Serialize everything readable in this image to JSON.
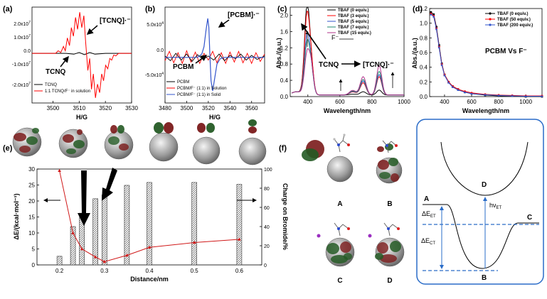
{
  "chart_data": [
    {
      "id": "a",
      "panel_label": "(a)",
      "type": "line",
      "xlabel": "H/G",
      "xlim": [
        3492,
        3530
      ],
      "xticks": [
        "3500",
        "3510",
        "3520",
        "3530"
      ],
      "yticks": [
        "2.0x10^7",
        "1.0x10^7",
        "0.0",
        "-1.0x10^7",
        "-2.0x10^7"
      ],
      "ylim": [
        -2.9,
        2.7
      ],
      "legend": [
        {
          "name": "TCNQ",
          "color": "#000000"
        },
        {
          "name": "1:1 TCNQ/F⁻ in solution",
          "color": "#ff0000"
        }
      ],
      "annotations": [
        "[TCNQ]·⁻",
        "TCNQ"
      ],
      "series": [
        {
          "name": "TCNQ",
          "values": [
            [
              3492,
              0
            ],
            [
              3505,
              0
            ],
            [
              3508,
              -0.05
            ],
            [
              3510,
              0.05
            ],
            [
              3512,
              -0.08
            ],
            [
              3514,
              0.05
            ],
            [
              3516,
              -0.05
            ],
            [
              3520,
              0
            ],
            [
              3530,
              0
            ]
          ]
        },
        {
          "name": "1:1 TCNQ/F⁻ in solution",
          "values": [
            [
              3492,
              0
            ],
            [
              3501,
              0
            ],
            [
              3502,
              0.15
            ],
            [
              3503,
              0.05
            ],
            [
              3504,
              0.4
            ],
            [
              3504.7,
              0.15
            ],
            [
              3505.5,
              0.9
            ],
            [
              3506.3,
              0.45
            ],
            [
              3507,
              1.5
            ],
            [
              3507.8,
              1.0
            ],
            [
              3508.6,
              2.1
            ],
            [
              3509.4,
              1.4
            ],
            [
              3510.2,
              2.4
            ],
            [
              3511,
              1.5
            ],
            [
              3511.8,
              2.2
            ],
            [
              3512.5,
              0.6
            ],
            [
              3513.3,
              -1.0
            ],
            [
              3514,
              -0.3
            ],
            [
              3514.7,
              -2.1
            ],
            [
              3515.4,
              -1.2
            ],
            [
              3516.2,
              -2.6
            ],
            [
              3517,
              -1.8
            ],
            [
              3517.8,
              -2.3
            ],
            [
              3518.6,
              -1.2
            ],
            [
              3519.3,
              -1.6
            ],
            [
              3520.1,
              -0.7
            ],
            [
              3520.9,
              -0.9
            ],
            [
              3521.7,
              -0.3
            ],
            [
              3522.4,
              -0.4
            ],
            [
              3523.2,
              -0.1
            ],
            [
              3524,
              -0.15
            ],
            [
              3525,
              0
            ],
            [
              3530,
              0
            ]
          ]
        }
      ]
    },
    {
      "id": "b",
      "panel_label": "(b)",
      "type": "line",
      "xlabel": "H/G",
      "xlim": [
        3480,
        3572
      ],
      "xticks": [
        "3480",
        "3500",
        "3520",
        "3540",
        "3560"
      ],
      "yticks": [
        "5.0x10^4",
        "0.0",
        "-5.0x10^4"
      ],
      "ylim": [
        -6.8,
        7.5
      ],
      "legend": [
        {
          "name": "PCBM",
          "color": "#000000"
        },
        {
          "name": "PCBM/F⁻ (1:1) in Solution",
          "color": "#ff0000"
        },
        {
          "name": "PCBM/F⁻ (1:1) in Solid",
          "color": "#3355cc"
        }
      ],
      "annotations": [
        "[PCBM]·⁻",
        "PCBM"
      ],
      "series": [
        {
          "name": "PCBM",
          "values": [
            [
              3480,
              0.2
            ],
            [
              3485,
              -0.5
            ],
            [
              3490,
              0.6
            ],
            [
              3495,
              -0.4
            ],
            [
              3500,
              0.5
            ],
            [
              3505,
              -0.6
            ],
            [
              3510,
              0.4
            ],
            [
              3515,
              -0.3
            ],
            [
              3520,
              0.2
            ],
            [
              3525,
              -0.4
            ],
            [
              3530,
              0.5
            ],
            [
              3535,
              -0.5
            ],
            [
              3540,
              0.3
            ],
            [
              3545,
              -0.2
            ],
            [
              3550,
              0.5
            ],
            [
              3555,
              -0.4
            ],
            [
              3560,
              0.3
            ],
            [
              3565,
              -0.3
            ],
            [
              3572,
              0.2
            ]
          ]
        },
        {
          "name": "PCBM/F⁻ (1:1) in Solution",
          "values": [
            [
              3480,
              -0.5
            ],
            [
              3484,
              0.9
            ],
            [
              3488,
              -0.8
            ],
            [
              3492,
              0.7
            ],
            [
              3496,
              -0.9
            ],
            [
              3500,
              1.0
            ],
            [
              3504,
              -0.7
            ],
            [
              3508,
              0.8
            ],
            [
              3512,
              -0.9
            ],
            [
              3516,
              0.6
            ],
            [
              3520,
              -0.4
            ],
            [
              3524,
              0.9
            ],
            [
              3528,
              -0.8
            ],
            [
              3532,
              0.7
            ],
            [
              3536,
              -0.9
            ],
            [
              3540,
              0.8
            ],
            [
              3544,
              -0.7
            ],
            [
              3548,
              0.9
            ],
            [
              3552,
              -0.8
            ],
            [
              3556,
              0.6
            ],
            [
              3560,
              -0.9
            ],
            [
              3564,
              0.7
            ],
            [
              3568,
              -0.6
            ],
            [
              3572,
              0.5
            ]
          ]
        },
        {
          "name": "PCBM/F⁻ (1:1) in Solid",
          "values": [
            [
              3480,
              0
            ],
            [
              3510,
              0
            ],
            [
              3514,
              0.5
            ],
            [
              3516,
              1.6
            ],
            [
              3518,
              4.2
            ],
            [
              3519.5,
              5.8
            ],
            [
              3520.5,
              4.5
            ],
            [
              3521.5,
              0
            ],
            [
              3522.5,
              -3.5
            ],
            [
              3524,
              -5.0
            ],
            [
              3526,
              -3.0
            ],
            [
              3528,
              -1.0
            ],
            [
              3531,
              -0.2
            ],
            [
              3535,
              0
            ],
            [
              3572,
              0
            ]
          ]
        }
      ]
    },
    {
      "id": "c",
      "panel_label": "(c)",
      "type": "line",
      "xlabel": "Wavelength/nm",
      "ylabel": "Abs./(a.u.)",
      "xlim": [
        290,
        1000
      ],
      "ylim": [
        0,
        2.2
      ],
      "xticks": [
        "400",
        "600",
        "800",
        "1000"
      ],
      "yticks": [
        "0.0",
        "0.4",
        "0.8",
        "1.2",
        "1.6",
        "2.0"
      ],
      "legend": [
        {
          "name": "TBAF (0 equiv.)",
          "color": "#000000"
        },
        {
          "name": "TBAF (3 equiv.)",
          "color": "#ff0000"
        },
        {
          "name": "TBAF (5 equiv.)",
          "color": "#3355cc"
        },
        {
          "name": "TBAF (7 equiv.)",
          "color": "#208a70"
        },
        {
          "name": "TBAF (15 equiv.)",
          "color": "#b0308a"
        }
      ],
      "annotations": [
        "TCNQ",
        "[TCNQ]·⁻",
        "F⁻"
      ],
      "series": [
        {
          "name": "TBAF (0 equiv.)",
          "peak395": 2.15,
          "peak422": 1.1,
          "peak745": 0.08,
          "peak845": 0.12
        },
        {
          "name": "TBAF (3 equiv.)",
          "peak395": 1.95,
          "peak422": 1.2,
          "peak745": 0.3,
          "peak845": 0.45
        },
        {
          "name": "TBAF (5 equiv.)",
          "peak395": 1.45,
          "peak422": 1.0,
          "peak745": 0.34,
          "peak845": 0.5
        },
        {
          "name": "TBAF (7 equiv.)",
          "peak395": 1.25,
          "peak422": 1.05,
          "peak745": 0.38,
          "peak845": 0.58
        },
        {
          "name": "TBAF (15 equiv.)",
          "peak395": 1.0,
          "peak422": 1.15,
          "peak745": 0.45,
          "peak845": 0.72
        }
      ]
    },
    {
      "id": "d",
      "panel_label": "(d)",
      "type": "line",
      "xlabel": "Wavelength/nm",
      "ylabel": "Abs./(a.u.)",
      "xlim": [
        290,
        1120
      ],
      "ylim": [
        0,
        1.2
      ],
      "xticks": [
        "400",
        "600",
        "800",
        "1000"
      ],
      "yticks": [
        "0.0",
        "0.2",
        "0.4",
        "0.6",
        "0.8",
        "1.0",
        "1.2"
      ],
      "legend": [
        {
          "name": "TBAF (0 equiv.)",
          "color": "#000000"
        },
        {
          "name": "TBAF (50 equiv.)",
          "color": "#ff0000"
        },
        {
          "name": "TBAF (200 equiv.)",
          "color": "#3355cc"
        }
      ],
      "annotations": [
        "PCBM Vs F⁻"
      ],
      "series": [
        {
          "name": "TBAF (0 equiv.)",
          "values": [
            [
              300,
              1.15
            ],
            [
              320,
              1.12
            ],
            [
              340,
              0.95
            ],
            [
              360,
              0.7
            ],
            [
              380,
              0.45
            ],
            [
              400,
              0.3
            ],
            [
              430,
              0.2
            ],
            [
              460,
              0.14
            ],
            [
              500,
              0.1
            ],
            [
              550,
              0.06
            ],
            [
              600,
              0.04
            ],
            [
              700,
              0.02
            ],
            [
              800,
              0.01
            ],
            [
              900,
              0.01
            ],
            [
              1000,
              0.0
            ],
            [
              1120,
              0.0
            ]
          ]
        },
        {
          "name": "TBAF (50 equiv.)",
          "values": [
            [
              300,
              1.13
            ],
            [
              320,
              1.1
            ],
            [
              340,
              0.93
            ],
            [
              360,
              0.68
            ],
            [
              380,
              0.44
            ],
            [
              400,
              0.3
            ],
            [
              430,
              0.2
            ],
            [
              460,
              0.14
            ],
            [
              500,
              0.1
            ],
            [
              550,
              0.07
            ],
            [
              600,
              0.05
            ],
            [
              700,
              0.03
            ],
            [
              800,
              0.02
            ],
            [
              900,
              0.015
            ],
            [
              1000,
              0.01
            ],
            [
              1120,
              0.01
            ]
          ]
        },
        {
          "name": "TBAF (200 equiv.)",
          "values": [
            [
              300,
              1.12
            ],
            [
              320,
              1.09
            ],
            [
              340,
              0.92
            ],
            [
              360,
              0.67
            ],
            [
              380,
              0.43
            ],
            [
              400,
              0.29
            ],
            [
              430,
              0.19
            ],
            [
              460,
              0.13
            ],
            [
              500,
              0.09
            ],
            [
              550,
              0.06
            ],
            [
              600,
              0.04
            ],
            [
              700,
              0.025
            ],
            [
              800,
              0.015
            ],
            [
              900,
              0.01
            ],
            [
              1000,
              0.005
            ],
            [
              1120,
              0.005
            ]
          ]
        }
      ]
    },
    {
      "id": "e",
      "panel_label": "(e)",
      "type": "bar",
      "xlabel": "Distance/nm",
      "ylabel": "ΔE/(kcal·mol⁻¹)",
      "y2label": "Charge on Bromide/%",
      "xlim": [
        0.15,
        0.65
      ],
      "xticks": [
        "0.2",
        "0.3",
        "0.4",
        "0.5",
        "0.6"
      ],
      "ylim": [
        0,
        30
      ],
      "y2lim": [
        0,
        100
      ],
      "yticks": [
        "0",
        "5",
        "10",
        "15",
        "20",
        "25",
        "30"
      ],
      "y2ticks": [
        "0",
        "20",
        "40",
        "60",
        "80",
        "100"
      ],
      "bars": [
        {
          "x": 0.2,
          "value": 9
        },
        {
          "x": 0.23,
          "value": 40
        },
        {
          "x": 0.25,
          "value": 54
        },
        {
          "x": 0.28,
          "value": 69
        },
        {
          "x": 0.3,
          "value": 73
        },
        {
          "x": 0.35,
          "value": 83
        },
        {
          "x": 0.4,
          "value": 86
        },
        {
          "x": 0.5,
          "value": 86
        },
        {
          "x": 0.6,
          "value": 84
        }
      ],
      "series": [
        {
          "name": "ΔE",
          "values": [
            [
              0.2,
              29.5
            ],
            [
              0.23,
              10
            ],
            [
              0.25,
              5
            ],
            [
              0.28,
              2.5
            ],
            [
              0.3,
              1
            ],
            [
              0.35,
              3
            ],
            [
              0.4,
              5.5
            ],
            [
              0.5,
              7
            ],
            [
              0.6,
              8
            ]
          ]
        }
      ]
    }
  ],
  "panel_f": {
    "panel_label": "(f)",
    "orbital_labels": [
      "A",
      "B",
      "C",
      "D"
    ],
    "diagram": {
      "state_A": "A",
      "state_B": "B",
      "state_C": "C",
      "state_D": "D",
      "delta_e_et": "ΔE",
      "delta_e_et_sub": "ET",
      "delta_e_ct": "ΔE",
      "delta_e_ct_sub": "CT",
      "hv_et": "hν",
      "hv_et_sub": "ET"
    }
  }
}
